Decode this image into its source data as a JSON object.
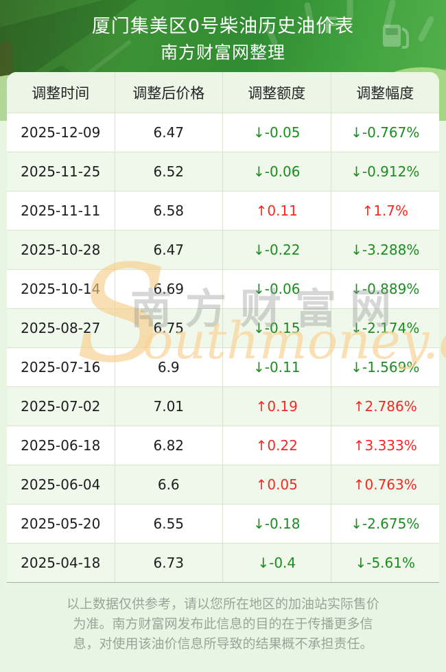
{
  "banner": {
    "title": "厦门集美区0号柴油历史油价表",
    "subtitle": "南方财富网整理"
  },
  "table": {
    "headers": [
      "调整时间",
      "调整后价格",
      "调整额度",
      "调整幅度"
    ],
    "rows": [
      {
        "date": "2025-12-09",
        "price": "6.47",
        "change": "↓-0.05",
        "pct": "↓-0.767%",
        "direction": "down"
      },
      {
        "date": "2025-11-25",
        "price": "6.52",
        "change": "↓-0.06",
        "pct": "↓-0.912%",
        "direction": "down"
      },
      {
        "date": "2025-11-11",
        "price": "6.58",
        "change": "↑0.11",
        "pct": "↑1.7%",
        "direction": "up"
      },
      {
        "date": "2025-10-28",
        "price": "6.47",
        "change": "↓-0.22",
        "pct": "↓-3.288%",
        "direction": "down"
      },
      {
        "date": "2025-10-14",
        "price": "6.69",
        "change": "↓-0.06",
        "pct": "↓-0.889%",
        "direction": "down"
      },
      {
        "date": "2025-08-27",
        "price": "6.75",
        "change": "↓-0.15",
        "pct": "↓-2.174%",
        "direction": "down"
      },
      {
        "date": "2025-07-16",
        "price": "6.9",
        "change": "↓-0.11",
        "pct": "↓-1.569%",
        "direction": "down"
      },
      {
        "date": "2025-07-02",
        "price": "7.01",
        "change": "↑0.19",
        "pct": "↑2.786%",
        "direction": "up"
      },
      {
        "date": "2025-06-18",
        "price": "6.82",
        "change": "↑0.22",
        "pct": "↑3.333%",
        "direction": "up"
      },
      {
        "date": "2025-06-04",
        "price": "6.6",
        "change": "↑0.05",
        "pct": "↑0.763%",
        "direction": "up"
      },
      {
        "date": "2025-05-20",
        "price": "6.55",
        "change": "↓-0.18",
        "pct": "↓-2.675%",
        "direction": "down"
      },
      {
        "date": "2025-04-18",
        "price": "6.73",
        "change": "↓-0.4",
        "pct": "↓-5.61%",
        "direction": "down"
      }
    ]
  },
  "watermark": {
    "initial": "S",
    "cjk": "南方财富网",
    "rest": "outhmoney.com"
  },
  "footer": {
    "lines": [
      "以上数据仅供参考，请以您所在地区的加油站实际售价",
      "为准。南方财富网发布此信息的目的在于传播更多信",
      "息，对使用该油价信息所导致的结果概不承担责任。"
    ]
  },
  "icons": {
    "fuel_gauge": "fuel-gauge-icon",
    "fuel_pump": "fuel-pump-icon"
  },
  "colors": {
    "banner_green": "#3c9135",
    "page_bg": "#e9f5e3",
    "row_alt_bg": "#f0f8eb",
    "header_bg": "#ecf5e6",
    "grid_line": "#d5e5cc",
    "up_red": "#fb2620",
    "down_green": "#1b8c1f",
    "watermark_orange": "#f8cb86",
    "watermark_gray": "#8c918c",
    "footer_gray": "#99a49a"
  }
}
